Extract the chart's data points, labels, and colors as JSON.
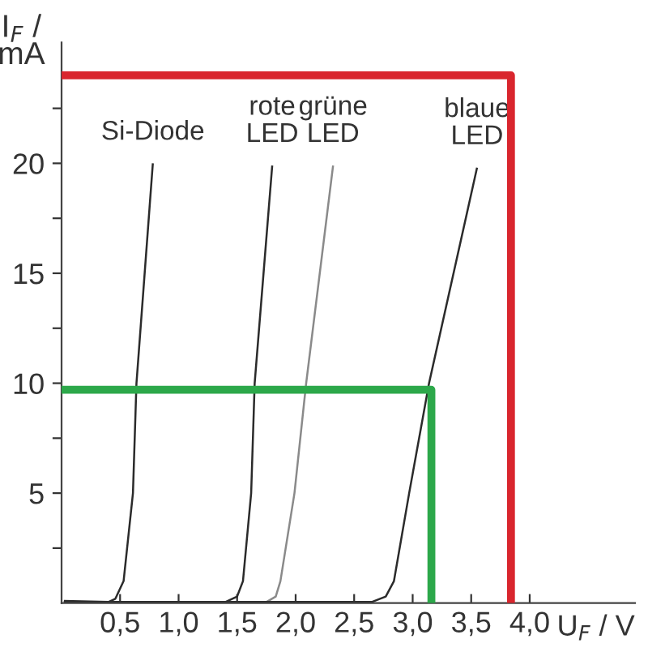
{
  "chart_data": {
    "type": "line",
    "xlabel": "U$_{F}$ / V",
    "ylabel": "I$_{F}$ /\nmA",
    "xlim": [
      0,
      4.9
    ],
    "ylim": [
      0,
      25.5
    ],
    "xticks": [
      {
        "value": 0.5,
        "label": "0,5"
      },
      {
        "value": 1.0,
        "label": "1,0"
      },
      {
        "value": 1.5,
        "label": "1,5"
      },
      {
        "value": 2.0,
        "label": "2,0"
      },
      {
        "value": 2.5,
        "label": "2,5"
      },
      {
        "value": 3.0,
        "label": "3,0"
      },
      {
        "value": 3.5,
        "label": "3,5"
      },
      {
        "value": 4.0,
        "label": "4,0"
      }
    ],
    "yticks": [
      {
        "value": 2.5,
        "label": null
      },
      5,
      {
        "value": 7.5,
        "label": null
      },
      10,
      {
        "value": 12.5,
        "label": null
      },
      15,
      {
        "value": 17.5,
        "label": null
      },
      20,
      {
        "value": 22.5,
        "label": null
      }
    ],
    "grid": false,
    "legend": false,
    "marker": "none",
    "line_style": "solid",
    "series": [
      {
        "name": "Si-Diode",
        "color": "#2b2b2b",
        "x": [
          0.02,
          0.4,
          0.46,
          0.53,
          0.61,
          0.64,
          0.78
        ],
        "values": [
          0.1,
          0.05,
          0.2,
          1,
          5,
          10,
          20
        ]
      },
      {
        "name": "rote\nLED",
        "color": "#2b2b2b",
        "x": [
          0.02,
          1.4,
          1.5,
          1.55,
          1.62,
          1.65,
          1.8
        ],
        "values": [
          0.05,
          0.05,
          0.3,
          1,
          5,
          10,
          19.9
        ]
      },
      {
        "name": "grüne\nLED",
        "color": "#8a8a8a",
        "x": [
          0.02,
          1.75,
          1.83,
          1.87,
          1.99,
          2.09,
          2.32
        ],
        "values": [
          0.05,
          0.05,
          0.3,
          1,
          5,
          10,
          19.9
        ]
      },
      {
        "name": "blaue\nLED",
        "color": "#2b2b2b",
        "x": [
          0.02,
          2.65,
          2.77,
          2.84,
          2.97,
          3.14,
          3.55
        ],
        "values": [
          0.05,
          0.05,
          0.3,
          1,
          5,
          10,
          19.8
        ]
      },
      {
        "color": "#d9262e",
        "x": [
          0,
          3.84,
          3.84
        ],
        "values": [
          24,
          24,
          0
        ]
      },
      {
        "color": "#2ca84a",
        "x": [
          0,
          3.16,
          3.16
        ],
        "values": [
          9.7,
          9.7,
          0
        ]
      }
    ]
  }
}
